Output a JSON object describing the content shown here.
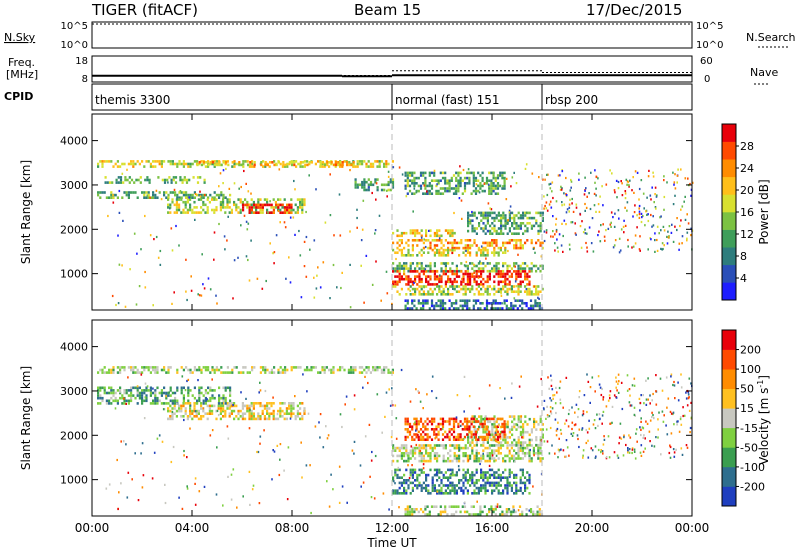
{
  "header": {
    "radar": "TIGER (fitACF)",
    "beam": "Beam 15",
    "date": "17/Dec/2015"
  },
  "strip_nsky": {
    "left_label": "N.Sky",
    "right_label": "N.Search",
    "ticks_left": [
      "10^5",
      "10^0"
    ],
    "ticks_right": [
      "10^5",
      "10^0"
    ]
  },
  "strip_freq": {
    "left_label_1": "Freq.",
    "left_label_2": "[MHz]",
    "right_label": "Nave",
    "ticks_left": [
      "18",
      "8"
    ],
    "ticks_right": [
      "60",
      "0"
    ],
    "ylim_left": [
      8,
      18
    ],
    "ylim_right": [
      0,
      60
    ],
    "freq_segments": [
      {
        "x0": 0,
        "x1": 10,
        "value": 10.4
      },
      {
        "x0": 10,
        "x1": 12,
        "value": 10.2
      },
      {
        "x0": 12,
        "x1": 18,
        "value": 10.6
      },
      {
        "x0": 18,
        "x1": 24,
        "value": 10.6
      }
    ],
    "nave_segments": [
      {
        "x0": 0,
        "x1": 12,
        "value": 15
      },
      {
        "x0": 12,
        "x1": 18,
        "value": 26
      },
      {
        "x0": 18,
        "x1": 24,
        "value": 22
      }
    ]
  },
  "cpid": {
    "label": "CPID",
    "segments": [
      {
        "x0": 0,
        "x1": 12,
        "name": "themis 3300"
      },
      {
        "x0": 12,
        "x1": 18,
        "name": "normal (fast) 151"
      },
      {
        "x0": 18,
        "x1": 24,
        "name": "rbsp 200"
      }
    ]
  },
  "chart_data": [
    {
      "type": "heatmap",
      "quantity": "power",
      "xlabel": "",
      "ylabel": "Slant Range [km]",
      "xlim": [
        0,
        24
      ],
      "ylim": [
        180,
        4600
      ],
      "yticks": [
        "1000",
        "2000",
        "3000",
        "4000"
      ],
      "colorbar": {
        "label": "Power [dB]",
        "range": [
          0,
          32
        ],
        "ticks": [
          "4",
          "8",
          "12",
          "16",
          "20",
          "24",
          "28"
        ],
        "colors": [
          "#1e1eff",
          "#2a4fb8",
          "#2e7d7d",
          "#3f9e5a",
          "#7cc242",
          "#d8e030",
          "#ffbf1a",
          "#ff8c00",
          "#ff4a00",
          "#e8000a"
        ]
      },
      "regions": [
        {
          "t0": 0.2,
          "t1": 12,
          "r0": 3420,
          "r1": 3560,
          "level": 0.55
        },
        {
          "t0": 4.0,
          "t1": 10.5,
          "r0": 3440,
          "r1": 3540,
          "level": 0.65
        },
        {
          "t0": 0.5,
          "t1": 4.5,
          "r0": 3060,
          "r1": 3200,
          "level": 0.4
        },
        {
          "t0": 0.2,
          "t1": 5.5,
          "r0": 2700,
          "r1": 2860,
          "level": 0.38
        },
        {
          "t0": 3.0,
          "t1": 8.5,
          "r0": 2360,
          "r1": 2700,
          "level": 0.5
        },
        {
          "t0": 6.0,
          "t1": 8.0,
          "r0": 2380,
          "r1": 2580,
          "level": 0.95
        },
        {
          "t0": 10.5,
          "t1": 12,
          "r0": 2900,
          "r1": 3150,
          "level": 0.35
        },
        {
          "t0": 12,
          "t1": 14.5,
          "r0": 1850,
          "r1": 2000,
          "level": 0.6
        },
        {
          "t0": 12,
          "t1": 18,
          "r0": 1560,
          "r1": 1780,
          "level": 0.7
        },
        {
          "t0": 12,
          "t1": 16.5,
          "r0": 1400,
          "r1": 1560,
          "level": 0.55
        },
        {
          "t0": 12,
          "t1": 18,
          "r0": 1080,
          "r1": 1260,
          "level": 0.4
        },
        {
          "t0": 12,
          "t1": 17.5,
          "r0": 750,
          "r1": 1080,
          "level": 0.92
        },
        {
          "t0": 12,
          "t1": 18,
          "r0": 560,
          "r1": 740,
          "level": 0.5
        },
        {
          "t0": 15,
          "t1": 18,
          "r0": 1900,
          "r1": 2400,
          "level": 0.35
        },
        {
          "t0": 12.5,
          "t1": 18,
          "r0": 220,
          "r1": 420,
          "level": 0.2
        },
        {
          "t0": 12.5,
          "t1": 16.5,
          "r0": 2800,
          "r1": 3300,
          "level": 0.35
        }
      ]
    },
    {
      "type": "heatmap",
      "quantity": "velocity",
      "xlabel": "Time UT",
      "ylabel": "Slant Range [km]",
      "xlim": [
        0,
        24
      ],
      "ylim": [
        180,
        4600
      ],
      "xticks": [
        "00:00",
        "04:00",
        "08:00",
        "12:00",
        "16:00",
        "20:00",
        "00:00"
      ],
      "xtick_values": [
        0,
        4,
        8,
        12,
        16,
        20,
        24
      ],
      "yticks": [
        "1000",
        "2000",
        "3000",
        "4000"
      ],
      "colorbar": {
        "label": "Velocity [m s",
        "label_sup": "-1",
        "label_end": "]",
        "ticks": [
          "200",
          "100",
          "50",
          "15",
          "-15",
          "-50",
          "-100",
          "-200"
        ],
        "colors": [
          "#1f3fbf",
          "#2e6e8e",
          "#3a9e50",
          "#7fd040",
          "#c8c8c0",
          "#ffc020",
          "#ff8c00",
          "#ff4a00",
          "#e8000a"
        ]
      },
      "regions": [
        {
          "t0": 0.2,
          "t1": 12,
          "r0": 3400,
          "r1": 3560,
          "level": 0.45
        },
        {
          "t0": 3.0,
          "t1": 8.5,
          "r0": 2380,
          "r1": 2750,
          "level": 0.55
        },
        {
          "t0": 0.2,
          "t1": 5.5,
          "r0": 2700,
          "r1": 3100,
          "level": 0.3
        },
        {
          "t0": 12,
          "t1": 18,
          "r0": 1400,
          "r1": 1800,
          "level": 0.45
        },
        {
          "t0": 15,
          "t1": 18,
          "r0": 1800,
          "r1": 2450,
          "level": 0.45
        },
        {
          "t0": 12,
          "t1": 17.5,
          "r0": 700,
          "r1": 1250,
          "level": 0.22
        },
        {
          "t0": 12.5,
          "t1": 16.5,
          "r0": 1900,
          "r1": 2400,
          "level": 0.82
        },
        {
          "t0": 12.5,
          "t1": 18,
          "r0": 220,
          "r1": 420,
          "level": 0.45
        }
      ]
    }
  ]
}
